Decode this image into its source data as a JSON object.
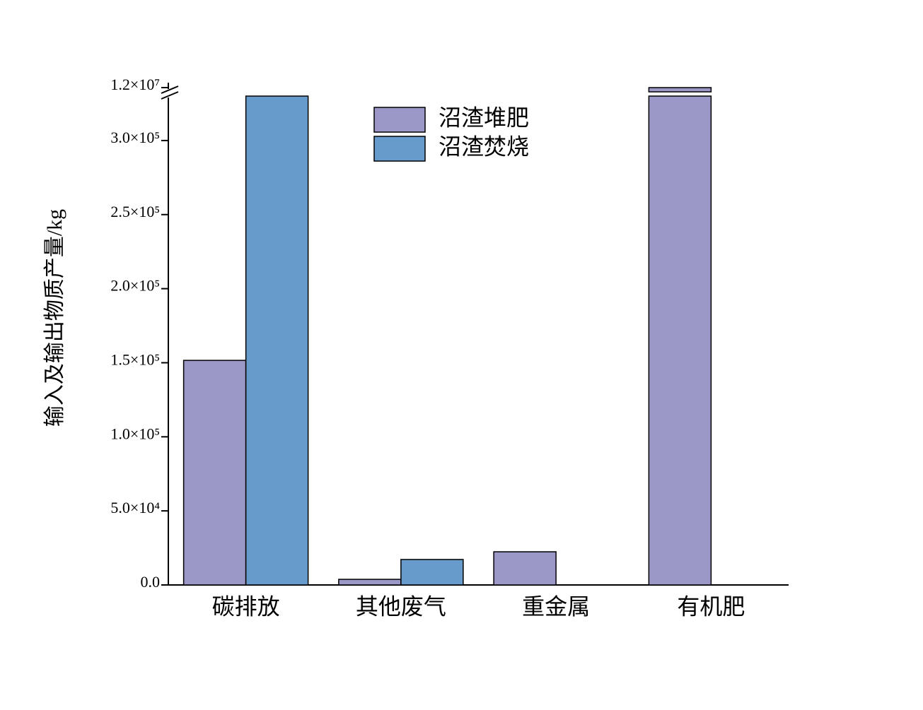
{
  "chart_data": {
    "type": "bar",
    "y_label": "输入及输出物质产量/kg",
    "categories": [
      "碳排放",
      "其他废气",
      "重金属",
      "有机肥"
    ],
    "series": [
      {
        "name": "沼渣堆肥",
        "color": "#9b98c8",
        "values": [
          151600,
          3800,
          22400,
          12000000
        ]
      },
      {
        "name": "沼渣焚烧",
        "color": "#669bcb",
        "values": [
          330000,
          17200,
          0,
          0
        ]
      }
    ],
    "ylim": [
      0,
      330000
    ],
    "yticks": [
      {
        "value": 0,
        "label": "0.0"
      },
      {
        "value": 50000,
        "label": "5.0×10⁴"
      },
      {
        "value": 100000,
        "label": "1.0×10⁵"
      },
      {
        "value": 150000,
        "label": "1.5×10⁵"
      },
      {
        "value": 200000,
        "label": "2.0×10⁵"
      },
      {
        "value": 250000,
        "label": "2.5×10⁵"
      },
      {
        "value": 300000,
        "label": "3.0×10⁵"
      }
    ],
    "axis_break": {
      "ylim": [
        11900000,
        12100000
      ],
      "yticks": [
        {
          "value": 12000000,
          "label": "1.2×10⁷"
        }
      ]
    },
    "legend": "top"
  }
}
